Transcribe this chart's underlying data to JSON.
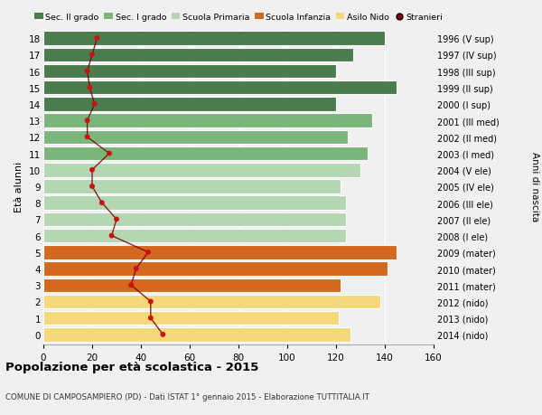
{
  "ages": [
    18,
    17,
    16,
    15,
    14,
    13,
    12,
    11,
    10,
    9,
    8,
    7,
    6,
    5,
    4,
    3,
    2,
    1,
    0
  ],
  "right_labels": [
    "1996 (V sup)",
    "1997 (IV sup)",
    "1998 (III sup)",
    "1999 (II sup)",
    "2000 (I sup)",
    "2001 (III med)",
    "2002 (II med)",
    "2003 (I med)",
    "2004 (V ele)",
    "2005 (IV ele)",
    "2006 (III ele)",
    "2007 (II ele)",
    "2008 (I ele)",
    "2009 (mater)",
    "2010 (mater)",
    "2011 (mater)",
    "2012 (nido)",
    "2013 (nido)",
    "2014 (nido)"
  ],
  "bar_values": [
    140,
    127,
    120,
    145,
    120,
    135,
    125,
    133,
    130,
    122,
    124,
    124,
    124,
    145,
    141,
    122,
    138,
    121,
    126
  ],
  "bar_colors": [
    "#4a7c4e",
    "#4a7c4e",
    "#4a7c4e",
    "#4a7c4e",
    "#4a7c4e",
    "#7ab57a",
    "#7ab57a",
    "#7ab57a",
    "#b5d6b2",
    "#b5d6b2",
    "#b5d6b2",
    "#b5d6b2",
    "#b5d6b2",
    "#d2691e",
    "#d2691e",
    "#d2691e",
    "#f5d87a",
    "#f5d87a",
    "#f5d87a"
  ],
  "stranieri_values": [
    22,
    20,
    18,
    19,
    21,
    18,
    18,
    27,
    20,
    20,
    24,
    30,
    28,
    43,
    38,
    36,
    44,
    44,
    49
  ],
  "legend_labels": [
    "Sec. II grado",
    "Sec. I grado",
    "Scuola Primaria",
    "Scuola Infanzia",
    "Asilo Nido",
    "Stranieri"
  ],
  "legend_colors": [
    "#4a7c4e",
    "#7ab57a",
    "#b5d6b2",
    "#d2691e",
    "#f5d87a",
    "#8b0000"
  ],
  "title": "Popolazione per età scolastica - 2015",
  "subtitle": "COMUNE DI CAMPOSAMPIERO (PD) - Dati ISTAT 1° gennaio 2015 - Elaborazione TUTTITALIA.IT",
  "ylabel_left": "Età alunni",
  "ylabel_right": "Anni di nascita",
  "xlim": [
    0,
    160
  ],
  "xticks": [
    0,
    20,
    40,
    60,
    80,
    100,
    120,
    140,
    160
  ],
  "bg_color": "#f0f0f0",
  "plot_bg": "#f0f0f0",
  "bar_height": 0.85,
  "stranieri_line_color": "#7a0000",
  "stranieri_dot_color": "#cc1111",
  "stranieri_dot_size": 18
}
